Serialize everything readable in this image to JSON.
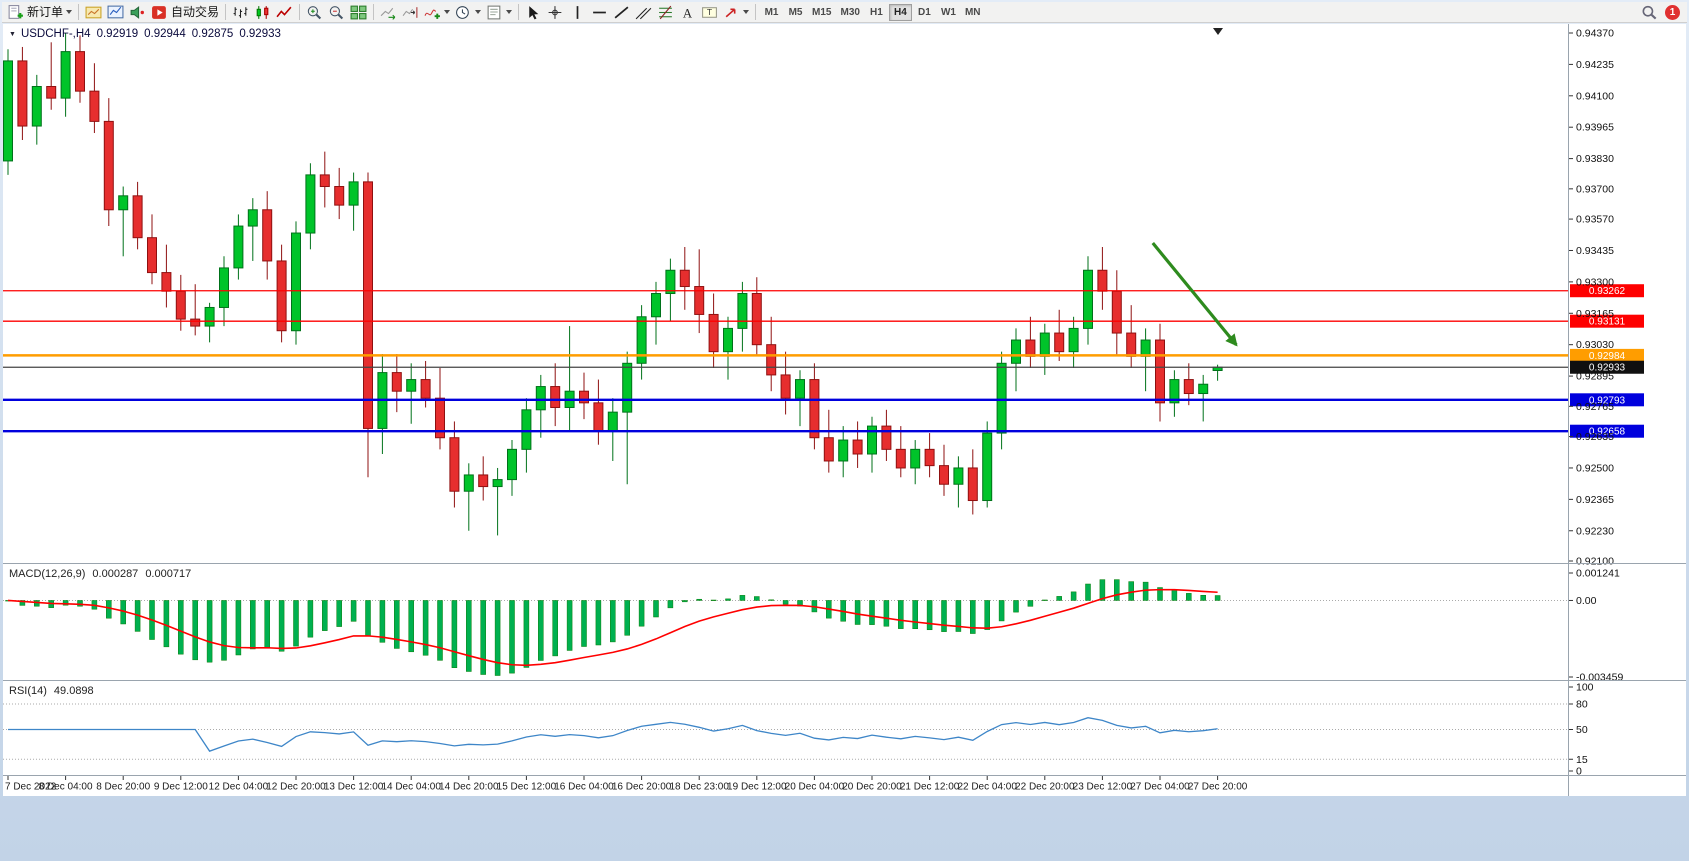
{
  "colors": {
    "toolbar_bg": "#f2f2f1",
    "chart_bg": "#ffffff",
    "bull_fill": "#00c42a",
    "bull_border": "#00721a",
    "bear_fill": "#e62e2e",
    "bear_border": "#8f1010",
    "level_red": "#fe0000",
    "level_orange": "#ff9d00",
    "level_blue": "#0000dd",
    "price_line": "#444444",
    "macd_hist": "#00b050",
    "macd_hist_border": "#067d06",
    "macd_signal": "#ff0000",
    "rsi_line": "#3e86c8",
    "axis_text": "#111111",
    "separator": "#9aa4ae",
    "dotted": "#aaaaaa",
    "arrow": "#2e8b1e",
    "badge_bg": "#e03030",
    "tick": "#333333"
  },
  "toolbar": {
    "new_order_label": "新订单",
    "auto_trading_label": "自动交易",
    "timeframes": [
      "M1",
      "M5",
      "M15",
      "M30",
      "H1",
      "H4",
      "D1",
      "W1",
      "MN"
    ],
    "active_timeframe": "H4",
    "notification_count": "1"
  },
  "chart_title": {
    "symbol": "USDCHF-,H4",
    "open": "0.92919",
    "high": "0.92944",
    "low": "0.92875",
    "close": "0.92933"
  },
  "chart_data": {
    "type": "candlestick",
    "symbol": "USDCHF-",
    "timeframe": "H4",
    "price_axis_labels": [
      "0.94370",
      "0.94235",
      "0.94100",
      "0.93965",
      "0.93830",
      "0.93700",
      "0.93570",
      "0.93435",
      "0.93300",
      "0.93165",
      "0.93030",
      "0.92895",
      "0.92765",
      "0.92635",
      "0.92500",
      "0.92365",
      "0.92230",
      "0.92100"
    ],
    "price_range": [
      0.921,
      0.9437
    ],
    "time_axis_labels": [
      "7 Dec 2022",
      "8 Dec 04:00",
      "8 Dec 20:00",
      "9 Dec 12:00",
      "12 Dec 04:00",
      "12 Dec 20:00",
      "13 Dec 12:00",
      "14 Dec 04:00",
      "14 Dec 20:00",
      "15 Dec 12:00",
      "16 Dec 04:00",
      "16 Dec 20:00",
      "18 Dec 23:00",
      "19 Dec 12:00",
      "20 Dec 04:00",
      "20 Dec 20:00",
      "21 Dec 12:00",
      "22 Dec 04:00",
      "22 Dec 20:00",
      "23 Dec 12:00",
      "27 Dec 04:00",
      "27 Dec 20:00"
    ],
    "bars_per_time_label": 4,
    "candles": [
      [
        0.9382,
        0.943,
        0.9376,
        0.9425
      ],
      [
        0.9425,
        0.9431,
        0.9391,
        0.9397
      ],
      [
        0.9397,
        0.9419,
        0.9389,
        0.9414
      ],
      [
        0.9414,
        0.9433,
        0.9404,
        0.9409
      ],
      [
        0.9409,
        0.9437,
        0.9401,
        0.9429
      ],
      [
        0.9429,
        0.9436,
        0.9407,
        0.9412
      ],
      [
        0.9412,
        0.9424,
        0.9394,
        0.9399
      ],
      [
        0.9399,
        0.9409,
        0.9354,
        0.9361
      ],
      [
        0.9361,
        0.9371,
        0.9341,
        0.9367
      ],
      [
        0.9367,
        0.9373,
        0.9344,
        0.9349
      ],
      [
        0.9349,
        0.9359,
        0.9329,
        0.9334
      ],
      [
        0.9334,
        0.9346,
        0.9319,
        0.9326
      ],
      [
        0.9326,
        0.9333,
        0.9309,
        0.9314
      ],
      [
        0.9314,
        0.9329,
        0.9307,
        0.9311
      ],
      [
        0.9311,
        0.9321,
        0.9304,
        0.9319
      ],
      [
        0.9319,
        0.9341,
        0.9311,
        0.9336
      ],
      [
        0.9336,
        0.9359,
        0.9331,
        0.9354
      ],
      [
        0.9354,
        0.9366,
        0.9339,
        0.9361
      ],
      [
        0.9361,
        0.9369,
        0.9331,
        0.9339
      ],
      [
        0.9339,
        0.9346,
        0.9304,
        0.9309
      ],
      [
        0.9309,
        0.9356,
        0.9303,
        0.9351
      ],
      [
        0.9351,
        0.9381,
        0.9344,
        0.9376
      ],
      [
        0.9376,
        0.9386,
        0.9362,
        0.9371
      ],
      [
        0.9371,
        0.9379,
        0.9357,
        0.9363
      ],
      [
        0.9363,
        0.9377,
        0.9352,
        0.9373
      ],
      [
        0.9373,
        0.9377,
        0.9246,
        0.9267
      ],
      [
        0.9267,
        0.9299,
        0.9256,
        0.9291
      ],
      [
        0.9291,
        0.9299,
        0.9274,
        0.9283
      ],
      [
        0.9283,
        0.9295,
        0.9269,
        0.9288
      ],
      [
        0.9288,
        0.9296,
        0.9276,
        0.928
      ],
      [
        0.928,
        0.9293,
        0.9258,
        0.9263
      ],
      [
        0.9263,
        0.927,
        0.9233,
        0.924
      ],
      [
        0.924,
        0.9252,
        0.9223,
        0.9247
      ],
      [
        0.9247,
        0.9255,
        0.9236,
        0.9242
      ],
      [
        0.9242,
        0.925,
        0.9221,
        0.9245
      ],
      [
        0.9245,
        0.9262,
        0.9238,
        0.9258
      ],
      [
        0.9258,
        0.928,
        0.9248,
        0.9275
      ],
      [
        0.9275,
        0.929,
        0.9263,
        0.9285
      ],
      [
        0.9285,
        0.9295,
        0.9268,
        0.9276
      ],
      [
        0.9276,
        0.9311,
        0.9266,
        0.9283
      ],
      [
        0.9283,
        0.9291,
        0.9271,
        0.9278
      ],
      [
        0.9278,
        0.9288,
        0.926,
        0.9266
      ],
      [
        0.9266,
        0.928,
        0.9253,
        0.9274
      ],
      [
        0.9274,
        0.93,
        0.9243,
        0.9295
      ],
      [
        0.9295,
        0.932,
        0.9288,
        0.9315
      ],
      [
        0.9315,
        0.933,
        0.9303,
        0.9325
      ],
      [
        0.9325,
        0.934,
        0.9313,
        0.9335
      ],
      [
        0.9335,
        0.9345,
        0.9318,
        0.9328
      ],
      [
        0.9328,
        0.9344,
        0.9308,
        0.9316
      ],
      [
        0.9316,
        0.9325,
        0.9293,
        0.93
      ],
      [
        0.93,
        0.9315,
        0.9288,
        0.931
      ],
      [
        0.931,
        0.933,
        0.93,
        0.9325
      ],
      [
        0.9325,
        0.9332,
        0.9298,
        0.9303
      ],
      [
        0.9303,
        0.9315,
        0.9283,
        0.929
      ],
      [
        0.929,
        0.93,
        0.9273,
        0.928
      ],
      [
        0.928,
        0.9292,
        0.9268,
        0.9288
      ],
      [
        0.9288,
        0.9295,
        0.9258,
        0.9263
      ],
      [
        0.9263,
        0.9275,
        0.9248,
        0.9253
      ],
      [
        0.9253,
        0.9268,
        0.9246,
        0.9262
      ],
      [
        0.9262,
        0.927,
        0.925,
        0.9256
      ],
      [
        0.9256,
        0.9272,
        0.9248,
        0.9268
      ],
      [
        0.9268,
        0.9275,
        0.9253,
        0.9258
      ],
      [
        0.9258,
        0.9268,
        0.9246,
        0.925
      ],
      [
        0.925,
        0.9262,
        0.9243,
        0.9258
      ],
      [
        0.9258,
        0.9265,
        0.9246,
        0.9251
      ],
      [
        0.9251,
        0.926,
        0.9238,
        0.9243
      ],
      [
        0.9243,
        0.9255,
        0.9233,
        0.925
      ],
      [
        0.925,
        0.9258,
        0.923,
        0.9236
      ],
      [
        0.9236,
        0.927,
        0.9233,
        0.9265
      ],
      [
        0.9265,
        0.93,
        0.9258,
        0.9295
      ],
      [
        0.9295,
        0.931,
        0.9283,
        0.9305
      ],
      [
        0.9305,
        0.9315,
        0.9293,
        0.9298
      ],
      [
        0.9298,
        0.9312,
        0.929,
        0.9308
      ],
      [
        0.9308,
        0.9318,
        0.9296,
        0.93
      ],
      [
        0.93,
        0.9315,
        0.9293,
        0.931
      ],
      [
        0.931,
        0.9341,
        0.9303,
        0.9335
      ],
      [
        0.9335,
        0.9345,
        0.9318,
        0.9326
      ],
      [
        0.9326,
        0.9335,
        0.9298,
        0.9308
      ],
      [
        0.9308,
        0.932,
        0.9293,
        0.9298
      ],
      [
        0.9298,
        0.931,
        0.9283,
        0.9305
      ],
      [
        0.9305,
        0.9312,
        0.927,
        0.9278
      ],
      [
        0.9278,
        0.9292,
        0.9272,
        0.9288
      ],
      [
        0.9288,
        0.9295,
        0.9277,
        0.9282
      ],
      [
        0.9282,
        0.929,
        0.927,
        0.9286
      ],
      [
        0.92919,
        0.92944,
        0.92875,
        0.92933
      ]
    ],
    "levels": [
      {
        "price": 0.93262,
        "label": "0.93262",
        "color_key": "red",
        "width": 1.3
      },
      {
        "price": 0.93131,
        "label": "0.93131",
        "color_key": "red",
        "width": 1.3
      },
      {
        "price": 0.92984,
        "label": "0.92984",
        "color_key": "orange",
        "width": 2.4
      },
      {
        "price": 0.92933,
        "label": "0.92933",
        "color_key": "black",
        "width": 1.2,
        "current": true
      },
      {
        "price": 0.92793,
        "label": "0.92793",
        "color_key": "blue",
        "width": 2.4
      },
      {
        "price": 0.92658,
        "label": "0.92658",
        "color_key": "blue",
        "width": 2.4
      }
    ],
    "indicators": {
      "macd": {
        "label": "MACD(12,26,9)",
        "main_value": "0.000287",
        "signal_value": "0.000717",
        "fast": 12,
        "slow": 26,
        "signal": 9,
        "axis_labels": [
          "0.001241",
          "0.00",
          "-0.003459"
        ]
      },
      "rsi": {
        "label": "RSI(14)",
        "value": "49.0898",
        "period": 14,
        "axis_labels": [
          "100",
          "80",
          "50",
          "15",
          "0"
        ],
        "level_lines": [
          80,
          50,
          15
        ]
      }
    },
    "annotation_arrow": {
      "from_bar": 79.5,
      "from_price": 0.93467,
      "to_bar": 85.3,
      "to_price": 0.93029
    }
  }
}
